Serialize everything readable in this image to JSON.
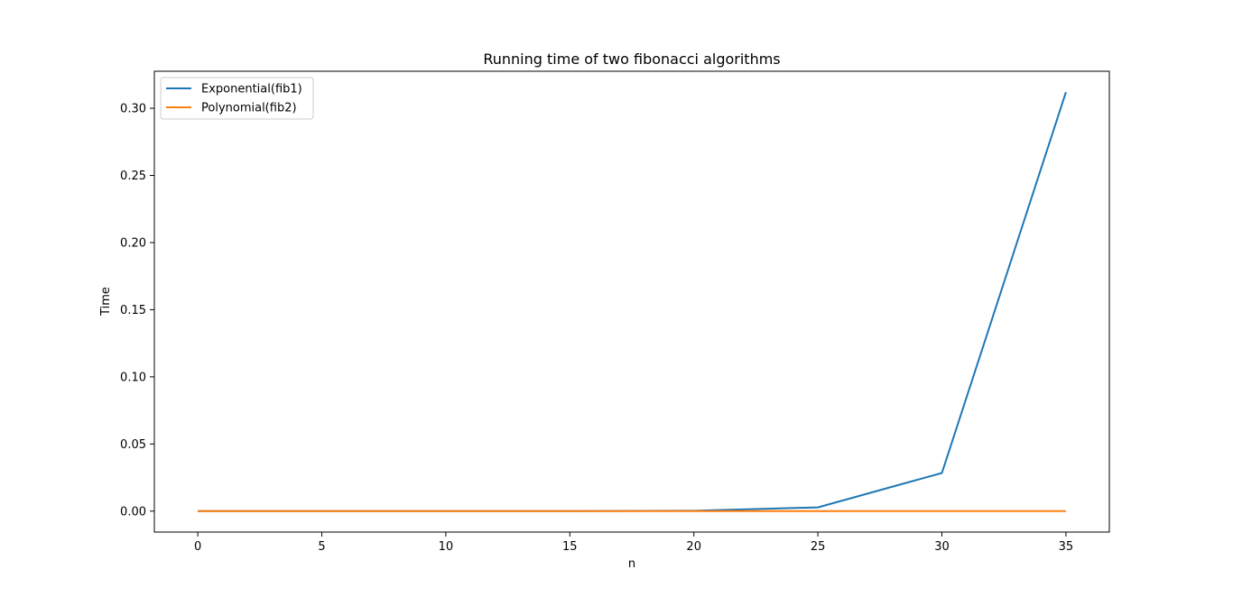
{
  "chart_data": {
    "type": "line",
    "title": "Running time of two fibonacci algorithms",
    "xlabel": "n",
    "ylabel": "Time",
    "x": [
      0,
      5,
      10,
      15,
      20,
      25,
      30,
      35
    ],
    "xlim": [
      -1.75,
      36.75
    ],
    "ylim": [
      -0.0156,
      0.3276
    ],
    "xticks": [
      0,
      5,
      10,
      15,
      20,
      25,
      30,
      35
    ],
    "xtick_labels": [
      "0",
      "5",
      "10",
      "15",
      "20",
      "25",
      "30",
      "35"
    ],
    "yticks": [
      0.0,
      0.05,
      0.1,
      0.15,
      0.2,
      0.25,
      0.3
    ],
    "ytick_labels": [
      "0.00",
      "0.05",
      "0.10",
      "0.15",
      "0.20",
      "0.25",
      "0.30"
    ],
    "grid": false,
    "legend_position": "top-left",
    "series": [
      {
        "name": "Exponential(fib1)",
        "color": "#1f77b4",
        "values": [
          0.0,
          0.0,
          0.0,
          3e-05,
          0.0003,
          0.0028,
          0.0284,
          0.312
        ]
      },
      {
        "name": "Polynomial(fib2)",
        "color": "#ff7f0e",
        "values": [
          0.0,
          0.0,
          0.0,
          0.0,
          0.0,
          0.0,
          0.0,
          0.0
        ]
      }
    ]
  }
}
